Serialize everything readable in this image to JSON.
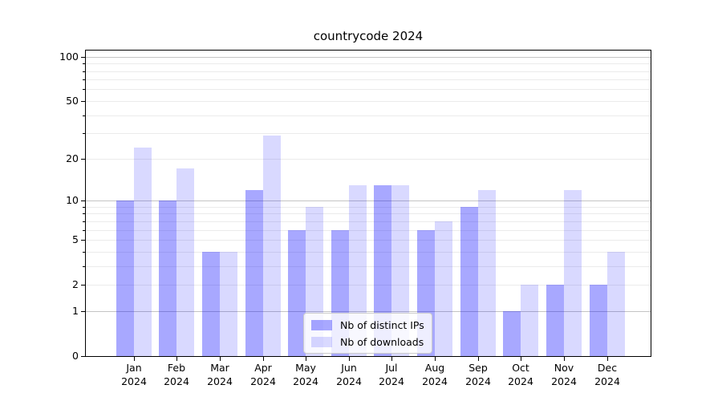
{
  "title": "countrycode 2024",
  "legend": {
    "items": [
      {
        "label": "Nb of distinct IPs"
      },
      {
        "label": "Nb of downloads"
      }
    ]
  },
  "chart_data": {
    "type": "bar",
    "title": "countrycode 2024",
    "categories": [
      "Jan 2024",
      "Feb 2024",
      "Mar 2024",
      "Apr 2024",
      "May 2024",
      "Jun 2024",
      "Jul 2024",
      "Aug 2024",
      "Sep 2024",
      "Oct 2024",
      "Nov 2024",
      "Dec 2024"
    ],
    "series": [
      {
        "name": "Nb of distinct IPs",
        "key": "distinct-ips",
        "color": "#0000ff",
        "alpha": 0.34,
        "values": [
          10,
          10,
          4,
          12,
          6,
          6,
          13,
          6,
          9,
          1,
          2,
          2
        ]
      },
      {
        "name": "Nb of downloads",
        "key": "downloads",
        "color": "#0000ff",
        "alpha": 0.15,
        "values": [
          24,
          17,
          4,
          29,
          9,
          13,
          13,
          7,
          12,
          2,
          12,
          4
        ]
      }
    ],
    "yscale": "log1p",
    "y_ticks": [
      0,
      1,
      2,
      5,
      10,
      20,
      50,
      100
    ],
    "y_tick_labels": [
      "0",
      "1",
      "2",
      "5",
      "10",
      "20",
      "50",
      "100"
    ],
    "ylim": [
      0,
      110
    ],
    "xlabel": "",
    "ylabel": "",
    "grid": true,
    "legend_position": "lower center"
  }
}
